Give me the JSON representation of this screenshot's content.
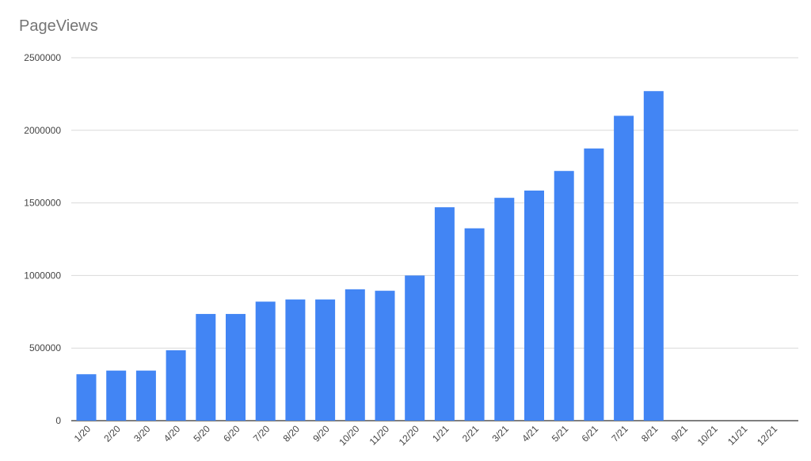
{
  "chart_data": {
    "type": "bar",
    "title": "PageViews",
    "xlabel": "",
    "ylabel": "",
    "ylim": [
      0,
      2500000
    ],
    "yticks": [
      0,
      500000,
      1000000,
      1500000,
      2000000,
      2500000
    ],
    "grid": true,
    "bar_color": "#4285f4",
    "categories": [
      "1/20",
      "2/20",
      "3/20",
      "4/20",
      "5/20",
      "6/20",
      "7/20",
      "8/20",
      "9/20",
      "10/20",
      "11/20",
      "12/20",
      "1/21",
      "2/21",
      "3/21",
      "4/21",
      "5/21",
      "6/21",
      "7/21",
      "8/21",
      "9/21",
      "10/21",
      "11/21",
      "12/21"
    ],
    "values": [
      320000,
      345000,
      345000,
      485000,
      735000,
      735000,
      820000,
      835000,
      835000,
      905000,
      895000,
      1000000,
      1470000,
      1325000,
      1535000,
      1585000,
      1720000,
      1875000,
      2100000,
      2270000,
      0,
      0,
      0,
      0
    ]
  }
}
